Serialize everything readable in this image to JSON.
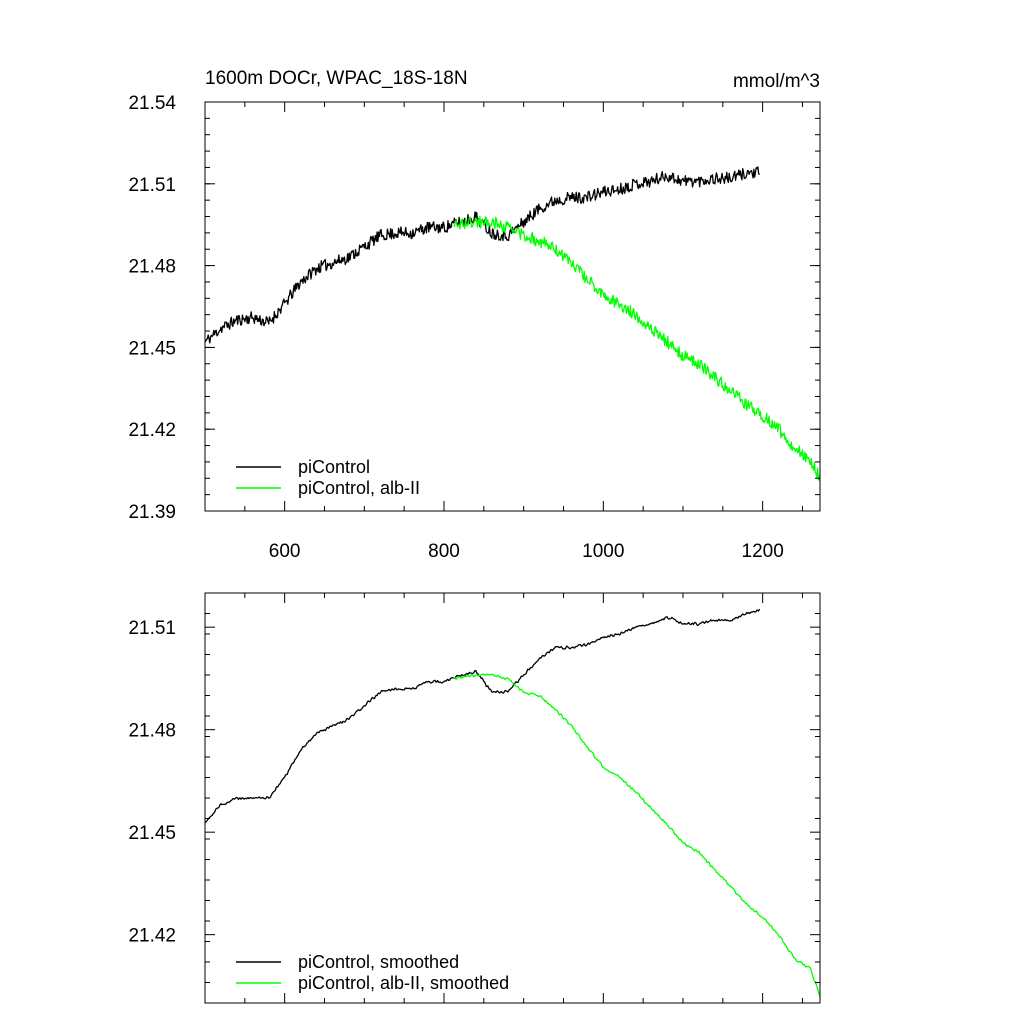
{
  "chart_data": [
    {
      "type": "line",
      "title": "1600m DOCr, WPAC_18S-18N",
      "units": "mmol/m^3",
      "xlim": [
        500,
        1272
      ],
      "ylim": [
        21.39,
        21.54
      ],
      "xticks": [
        600,
        800,
        1000,
        1200
      ],
      "xtick_labels": [
        "600",
        "800",
        "1000",
        "1200"
      ],
      "yticks": [
        21.39,
        21.42,
        21.45,
        21.48,
        21.51,
        21.54
      ],
      "ytick_labels": [
        "21.39",
        "21.42",
        "21.45",
        "21.48",
        "21.51",
        "21.54"
      ],
      "legend_position": "bottom-left",
      "series": [
        {
          "name": "piControl",
          "color": "#000000",
          "noise": 0.0022,
          "x": [
            500,
            520,
            540,
            560,
            580,
            600,
            620,
            640,
            660,
            680,
            700,
            720,
            740,
            760,
            780,
            800,
            820,
            840,
            860,
            880,
            900,
            920,
            940,
            960,
            980,
            1000,
            1020,
            1040,
            1060,
            1080,
            1100,
            1120,
            1140,
            1160,
            1180,
            1196
          ],
          "y": [
            21.452,
            21.457,
            21.46,
            21.461,
            21.459,
            21.466,
            21.474,
            21.479,
            21.481,
            21.483,
            21.487,
            21.491,
            21.492,
            21.492,
            21.494,
            21.494,
            21.496,
            21.498,
            21.492,
            21.491,
            21.496,
            21.501,
            21.504,
            21.505,
            21.505,
            21.507,
            21.508,
            21.51,
            21.511,
            21.513,
            21.511,
            21.511,
            21.512,
            21.512,
            21.514,
            21.514
          ]
        },
        {
          "name": "piControl, alb-II",
          "color": "#00ff00",
          "noise": 0.0022,
          "x": [
            812,
            840,
            860,
            880,
            900,
            920,
            940,
            960,
            980,
            1000,
            1020,
            1040,
            1060,
            1080,
            1100,
            1120,
            1140,
            1160,
            1180,
            1200,
            1220,
            1240,
            1260,
            1272
          ],
          "y": [
            21.495,
            21.496,
            21.496,
            21.494,
            21.491,
            21.489,
            21.486,
            21.481,
            21.475,
            21.469,
            21.466,
            21.462,
            21.457,
            21.452,
            21.447,
            21.444,
            21.439,
            21.434,
            21.429,
            21.425,
            21.42,
            21.413,
            21.409,
            21.402
          ]
        }
      ]
    },
    {
      "type": "line",
      "xlim": [
        500,
        1272
      ],
      "ylim": [
        21.4,
        21.52
      ],
      "xticks": [
        600,
        800,
        1000,
        1200
      ],
      "yticks": [
        21.42,
        21.45,
        21.48,
        21.51
      ],
      "ytick_labels": [
        "21.42",
        "21.45",
        "21.48",
        "21.51"
      ],
      "legend_position": "bottom-left",
      "series": [
        {
          "name": "piControl, smoothed",
          "color": "#000000",
          "noise": 0.0005,
          "x": [
            500,
            520,
            540,
            560,
            580,
            600,
            620,
            640,
            660,
            680,
            700,
            720,
            740,
            760,
            780,
            800,
            820,
            840,
            860,
            880,
            900,
            920,
            940,
            960,
            980,
            1000,
            1020,
            1040,
            1060,
            1080,
            1100,
            1120,
            1140,
            1160,
            1180,
            1196
          ],
          "y": [
            21.453,
            21.458,
            21.46,
            21.46,
            21.46,
            21.466,
            21.474,
            21.479,
            21.481,
            21.483,
            21.487,
            21.491,
            21.492,
            21.492,
            21.494,
            21.494,
            21.496,
            21.497,
            21.491,
            21.491,
            21.496,
            21.501,
            21.504,
            21.504,
            21.505,
            21.507,
            21.508,
            21.51,
            21.511,
            21.513,
            21.511,
            21.511,
            21.512,
            21.512,
            21.514,
            21.515
          ]
        },
        {
          "name": "piControl, alb-II, smoothed",
          "color": "#00ff00",
          "noise": 0.0005,
          "x": [
            812,
            840,
            860,
            880,
            900,
            920,
            940,
            960,
            980,
            1000,
            1020,
            1040,
            1060,
            1080,
            1100,
            1120,
            1140,
            1160,
            1180,
            1200,
            1220,
            1240,
            1260,
            1272
          ],
          "y": [
            21.495,
            21.496,
            21.496,
            21.495,
            21.491,
            21.49,
            21.486,
            21.481,
            21.475,
            21.469,
            21.466,
            21.462,
            21.457,
            21.452,
            21.447,
            21.444,
            21.439,
            21.434,
            21.429,
            21.425,
            21.42,
            21.413,
            21.41,
            21.402
          ]
        }
      ]
    }
  ]
}
